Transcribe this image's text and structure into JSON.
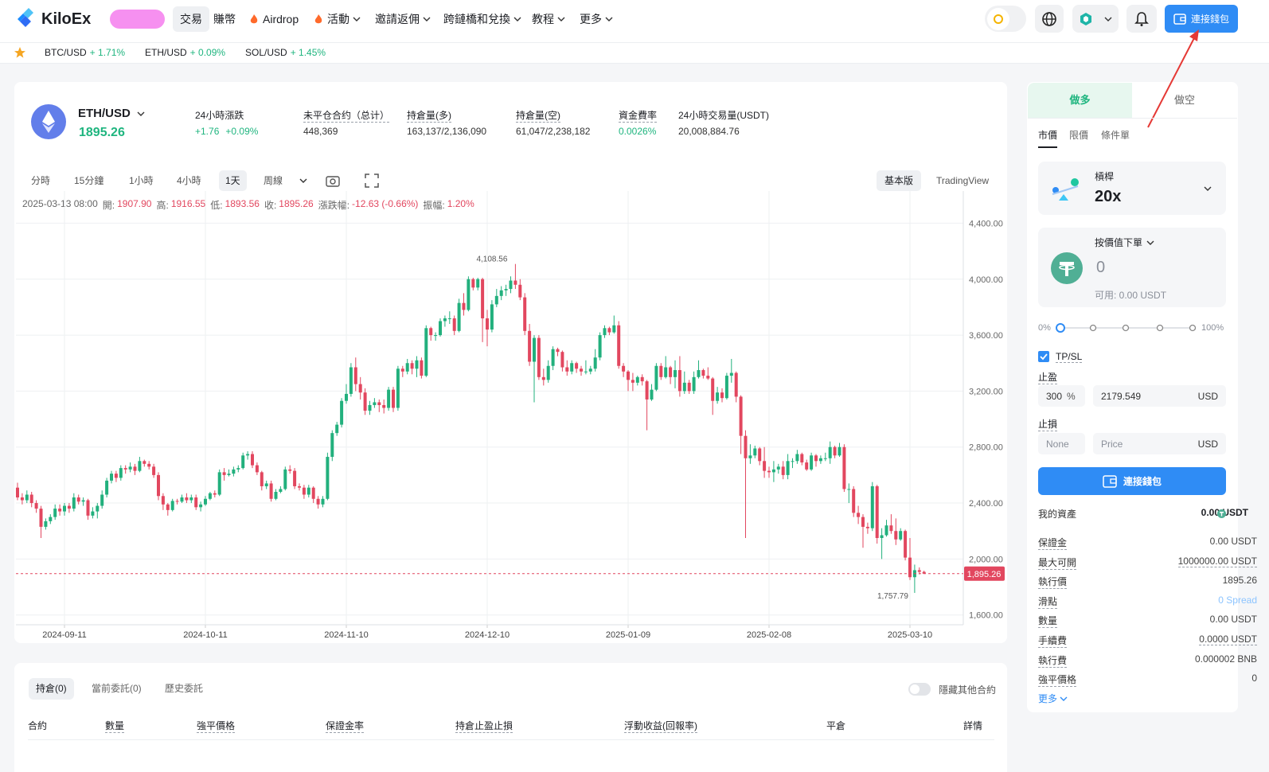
{
  "nav": {
    "logo": "KiloEx",
    "items": [
      "交易",
      "賺幣",
      "Airdrop",
      "活動",
      "邀請返佣",
      "跨鏈橋和兌換",
      "教程",
      "更多"
    ],
    "connect": "連接錢包"
  },
  "ticker": [
    {
      "pair": "BTC/USD",
      "change": "+ 1.71%"
    },
    {
      "pair": "ETH/USD",
      "change": "+ 0.09%"
    },
    {
      "pair": "SOL/USD",
      "change": "+ 1.45%"
    }
  ],
  "market": {
    "pair": "ETH/USD",
    "price": "1895.26",
    "stats": [
      {
        "label": "24小時漲跌",
        "values": [
          "+1.76",
          "+0.09%"
        ],
        "color": "#1fb57f"
      },
      {
        "label": "未平仓合约（总计）",
        "values": [
          "448,369"
        ]
      },
      {
        "label": "持倉量(多)",
        "values": [
          "163,137/2,136,090"
        ]
      },
      {
        "label": "持倉量(空)",
        "values": [
          "61,047/2,238,182"
        ]
      },
      {
        "label": "資金費率",
        "values": [
          "0.0026%"
        ],
        "color": "#1fb57f"
      },
      {
        "label": "24小時交易量(USDT)",
        "values": [
          "20,008,884.76"
        ]
      }
    ]
  },
  "toolbar": {
    "intervals": [
      "分時",
      "15分鐘",
      "1小時",
      "4小時",
      "1天",
      "周線"
    ],
    "views": [
      "基本版",
      "TradingView"
    ]
  },
  "chart_data": {
    "type": "candlestick",
    "info": {
      "time": "2025-03-13 08:00",
      "items": [
        {
          "label": "開:",
          "value": "1907.90"
        },
        {
          "label": "高:",
          "value": "1916.55"
        },
        {
          "label": "低:",
          "value": "1893.56"
        },
        {
          "label": "收:",
          "value": "1895.26"
        },
        {
          "label": "漲跌幅:",
          "value": "-12.63 (-0.66%)"
        },
        {
          "label": "振幅:",
          "value": "1.20%"
        }
      ]
    },
    "up_color": "#22b07d",
    "down_color": "#e2475f",
    "grid": true,
    "x": [
      "2024-09-01",
      "2024-09-02",
      "2024-09-03",
      "2024-09-04",
      "2024-09-05",
      "2024-09-06",
      "2024-09-07",
      "2024-09-08",
      "2024-09-09",
      "2024-09-10",
      "2024-09-11",
      "2024-09-12",
      "2024-09-13",
      "2024-09-14",
      "2024-09-15",
      "2024-09-16",
      "2024-09-17",
      "2024-09-18",
      "2024-09-19",
      "2024-09-20",
      "2024-09-21",
      "2024-09-22",
      "2024-09-23",
      "2024-09-24",
      "2024-09-25",
      "2024-09-26",
      "2024-09-27",
      "2024-09-28",
      "2024-09-29",
      "2024-09-30",
      "2024-10-01",
      "2024-10-02",
      "2024-10-03",
      "2024-10-04",
      "2024-10-05",
      "2024-10-06",
      "2024-10-07",
      "2024-10-08",
      "2024-10-09",
      "2024-10-10",
      "2024-10-11",
      "2024-10-12",
      "2024-10-13",
      "2024-10-14",
      "2024-10-15",
      "2024-10-16",
      "2024-10-17",
      "2024-10-18",
      "2024-10-19",
      "2024-10-20",
      "2024-10-21",
      "2024-10-22",
      "2024-10-23",
      "2024-10-24",
      "2024-10-25",
      "2024-10-26",
      "2024-10-27",
      "2024-10-28",
      "2024-10-29",
      "2024-10-30",
      "2024-10-31",
      "2024-11-01",
      "2024-11-02",
      "2024-11-03",
      "2024-11-04",
      "2024-11-05",
      "2024-11-06",
      "2024-11-07",
      "2024-11-08",
      "2024-11-09",
      "2024-11-10",
      "2024-11-11",
      "2024-11-12",
      "2024-11-13",
      "2024-11-14",
      "2024-11-15",
      "2024-11-16",
      "2024-11-17",
      "2024-11-18",
      "2024-11-19",
      "2024-11-20",
      "2024-11-21",
      "2024-11-22",
      "2024-11-23",
      "2024-11-24",
      "2024-11-25",
      "2024-11-26",
      "2024-11-27",
      "2024-11-28",
      "2024-11-29",
      "2024-11-30",
      "2024-12-01",
      "2024-12-02",
      "2024-12-03",
      "2024-12-04",
      "2024-12-05",
      "2024-12-06",
      "2024-12-07",
      "2024-12-08",
      "2024-12-09",
      "2024-12-10",
      "2024-12-11",
      "2024-12-12",
      "2024-12-13",
      "2024-12-14",
      "2024-12-15",
      "2024-12-16",
      "2024-12-17",
      "2024-12-18",
      "2024-12-19",
      "2024-12-20",
      "2024-12-21",
      "2024-12-22",
      "2024-12-23",
      "2024-12-24",
      "2024-12-25",
      "2024-12-26",
      "2024-12-27",
      "2024-12-28",
      "2024-12-29",
      "2024-12-30",
      "2024-12-31",
      "2025-01-01",
      "2025-01-02",
      "2025-01-03",
      "2025-01-04",
      "2025-01-05",
      "2025-01-06",
      "2025-01-07",
      "2025-01-08",
      "2025-01-09",
      "2025-01-10",
      "2025-01-11",
      "2025-01-12",
      "2025-01-13",
      "2025-01-14",
      "2025-01-15",
      "2025-01-16",
      "2025-01-17",
      "2025-01-18",
      "2025-01-19",
      "2025-01-20",
      "2025-01-21",
      "2025-01-22",
      "2025-01-23",
      "2025-01-24",
      "2025-01-25",
      "2025-01-26",
      "2025-01-27",
      "2025-01-28",
      "2025-01-29",
      "2025-01-30",
      "2025-01-31",
      "2025-02-01",
      "2025-02-02",
      "2025-02-03",
      "2025-02-04",
      "2025-02-05",
      "2025-02-06",
      "2025-02-07",
      "2025-02-08",
      "2025-02-09",
      "2025-02-10",
      "2025-02-11",
      "2025-02-12",
      "2025-02-13",
      "2025-02-14",
      "2025-02-15",
      "2025-02-16",
      "2025-02-17",
      "2025-02-18",
      "2025-02-19",
      "2025-02-20",
      "2025-02-21",
      "2025-02-22",
      "2025-02-23",
      "2025-02-24",
      "2025-02-25",
      "2025-02-26",
      "2025-02-27",
      "2025-02-28",
      "2025-03-01",
      "2025-03-02",
      "2025-03-03",
      "2025-03-04",
      "2025-03-05",
      "2025-03-06",
      "2025-03-07",
      "2025-03-08",
      "2025-03-09",
      "2025-03-10",
      "2025-03-11",
      "2025-03-12",
      "2025-03-13"
    ],
    "open": [
      2510,
      2440,
      2420,
      2460,
      2400,
      2360,
      2230,
      2270,
      2300,
      2360,
      2340,
      2380,
      2360,
      2440,
      2410,
      2420,
      2310,
      2340,
      2380,
      2460,
      2560,
      2610,
      2580,
      2650,
      2640,
      2660,
      2630,
      2700,
      2680,
      2660,
      2600,
      2450,
      2390,
      2350,
      2415,
      2410,
      2440,
      2420,
      2440,
      2370,
      2390,
      2430,
      2470,
      2460,
      2620,
      2600,
      2610,
      2640,
      2650,
      2740,
      2750,
      2670,
      2620,
      2520,
      2540,
      2430,
      2480,
      2500,
      2640,
      2630,
      2520,
      2510,
      2460,
      2510,
      2430,
      2390,
      2430,
      2730,
      2900,
      2960,
      3130,
      3180,
      3370,
      3250,
      3190,
      3060,
      3100,
      3120,
      3100,
      3080,
      3210,
      3080,
      3360,
      3340,
      3400,
      3360,
      3420,
      3310,
      3650,
      3600,
      3600,
      3700,
      3720,
      3720,
      3630,
      3830,
      3780,
      4000,
      3940,
      4000,
      3720,
      3640,
      3820,
      3880,
      3920,
      3930,
      3990,
      3960,
      3870,
      3630,
      3410,
      3580,
      3300,
      3280,
      3380,
      3500,
      3480,
      3370,
      3340,
      3400,
      3360,
      3340,
      3340,
      3360,
      3440,
      3600,
      3650,
      3620,
      3670,
      3380,
      3340,
      3280,
      3260,
      3300,
      3270,
      3140,
      3210,
      3380,
      3300,
      3370,
      3300,
      3350,
      3200,
      3260,
      3200,
      3300,
      3350,
      3310,
      3290,
      3130,
      3190,
      3150,
      3310,
      3330,
      3160,
      2880,
      2720,
      2740,
      2790,
      2700,
      2630,
      2620,
      2640,
      2660,
      2600,
      2700,
      2700,
      2750,
      2690,
      2640,
      2740,
      2700,
      2720,
      2720,
      2800,
      2740,
      2800,
      2500,
      2500,
      2330,
      2300,
      2230,
      2220,
      2520,
      2150,
      2170,
      2240,
      2200,
      2140,
      2200,
      2010,
      1870,
      1920,
      1907.9
    ],
    "high": [
      2545,
      2470,
      2490,
      2480,
      2420,
      2380,
      2290,
      2320,
      2390,
      2390,
      2400,
      2400,
      2470,
      2460,
      2440,
      2430,
      2370,
      2400,
      2490,
      2580,
      2630,
      2630,
      2670,
      2670,
      2690,
      2680,
      2730,
      2710,
      2700,
      2680,
      2620,
      2470,
      2400,
      2430,
      2430,
      2460,
      2470,
      2460,
      2460,
      2410,
      2450,
      2480,
      2490,
      2640,
      2650,
      2640,
      2660,
      2670,
      2760,
      2770,
      2770,
      2690,
      2630,
      2560,
      2560,
      2500,
      2520,
      2660,
      2670,
      2650,
      2540,
      2530,
      2530,
      2520,
      2450,
      2450,
      2760,
      2920,
      2980,
      3150,
      3250,
      3400,
      3440,
      3300,
      3220,
      3130,
      3150,
      3140,
      3140,
      3230,
      3230,
      3380,
      3380,
      3430,
      3420,
      3450,
      3440,
      3670,
      3660,
      3620,
      3720,
      3740,
      3770,
      3740,
      3860,
      3900,
      4020,
      4010,
      4010,
      4010,
      3780,
      3850,
      3930,
      3950,
      3960,
      4020,
      4108.56,
      4000,
      3900,
      3680,
      3600,
      3600,
      3360,
      3420,
      3520,
      3510,
      3490,
      3420,
      3420,
      3410,
      3380,
      3420,
      3380,
      3500,
      3620,
      3670,
      3660,
      3740,
      3700,
      3400,
      3350,
      3330,
      3310,
      3320,
      3280,
      3250,
      3400,
      3400,
      3450,
      3380,
      3420,
      3450,
      3340,
      3280,
      3340,
      3420,
      3360,
      3370,
      3300,
      3230,
      3220,
      3330,
      3430,
      3340,
      3170,
      2920,
      2820,
      2810,
      2800,
      2800,
      2660,
      2700,
      2680,
      2700,
      2750,
      2720,
      2780,
      2760,
      2710,
      2760,
      2750,
      2740,
      2760,
      2840,
      2810,
      2830,
      2820,
      2540,
      2520,
      2380,
      2320,
      2260,
      2550,
      2530,
      2220,
      2280,
      2320,
      2290,
      2220,
      2210,
      2150,
      1960,
      1940,
      1916.55
    ],
    "low": [
      2420,
      2390,
      2400,
      2370,
      2330,
      2150,
      2210,
      2250,
      2280,
      2310,
      2310,
      2330,
      2340,
      2390,
      2380,
      2280,
      2290,
      2290,
      2360,
      2440,
      2540,
      2550,
      2560,
      2610,
      2620,
      2600,
      2620,
      2660,
      2640,
      2580,
      2420,
      2350,
      2310,
      2340,
      2390,
      2400,
      2400,
      2400,
      2350,
      2340,
      2380,
      2420,
      2440,
      2450,
      2560,
      2590,
      2590,
      2620,
      2640,
      2710,
      2650,
      2600,
      2490,
      2500,
      2410,
      2420,
      2470,
      2490,
      2610,
      2500,
      2490,
      2430,
      2440,
      2400,
      2360,
      2370,
      2420,
      2700,
      2880,
      2940,
      3110,
      3160,
      3200,
      3140,
      3030,
      3030,
      3080,
      3050,
      3040,
      3060,
      3050,
      3060,
      3300,
      3320,
      3320,
      3300,
      3290,
      3300,
      3560,
      3560,
      3590,
      3660,
      3680,
      3600,
      3620,
      3740,
      3770,
      3920,
      3920,
      3550,
      3520,
      3620,
      3800,
      3850,
      3880,
      3900,
      3930,
      3850,
      3600,
      3380,
      3120,
      3280,
      3240,
      3260,
      3350,
      3450,
      3340,
      3310,
      3320,
      3330,
      3310,
      3320,
      3320,
      3340,
      3420,
      3580,
      3600,
      3610,
      3360,
      3300,
      3200,
      3200,
      3240,
      3240,
      2920,
      3130,
      3200,
      3280,
      3290,
      3250,
      3220,
      3160,
      3180,
      3180,
      3180,
      3290,
      3290,
      3280,
      3030,
      3110,
      3120,
      3140,
      3260,
      3120,
      2750,
      2150,
      2680,
      2720,
      2670,
      2580,
      2580,
      2550,
      2610,
      2570,
      2570,
      2650,
      2680,
      2670,
      2630,
      2630,
      2660,
      2680,
      2700,
      2680,
      2720,
      2730,
      2480,
      2400,
      2300,
      2250,
      2080,
      2180,
      2200,
      2110,
      2000,
      2160,
      2180,
      2100,
      2130,
      1990,
      1850,
      1757.79,
      1890,
      1893.56
    ],
    "close": [
      2440,
      2420,
      2460,
      2400,
      2360,
      2230,
      2270,
      2300,
      2360,
      2340,
      2380,
      2360,
      2440,
      2410,
      2420,
      2310,
      2340,
      2380,
      2460,
      2560,
      2610,
      2580,
      2650,
      2640,
      2660,
      2630,
      2700,
      2680,
      2660,
      2600,
      2450,
      2390,
      2350,
      2415,
      2410,
      2440,
      2420,
      2440,
      2370,
      2390,
      2430,
      2470,
      2460,
      2620,
      2600,
      2610,
      2640,
      2650,
      2740,
      2750,
      2670,
      2620,
      2520,
      2540,
      2430,
      2480,
      2500,
      2640,
      2630,
      2520,
      2510,
      2460,
      2510,
      2430,
      2390,
      2430,
      2730,
      2900,
      2960,
      3130,
      3180,
      3370,
      3250,
      3190,
      3060,
      3100,
      3120,
      3100,
      3080,
      3210,
      3080,
      3360,
      3340,
      3400,
      3360,
      3420,
      3310,
      3650,
      3600,
      3600,
      3700,
      3720,
      3720,
      3630,
      3830,
      3780,
      4000,
      3940,
      4000,
      3720,
      3640,
      3820,
      3880,
      3920,
      3930,
      3990,
      3960,
      3870,
      3630,
      3410,
      3580,
      3300,
      3280,
      3380,
      3500,
      3480,
      3370,
      3340,
      3400,
      3360,
      3340,
      3340,
      3360,
      3440,
      3600,
      3650,
      3620,
      3670,
      3380,
      3340,
      3280,
      3260,
      3300,
      3270,
      3140,
      3210,
      3380,
      3300,
      3370,
      3300,
      3350,
      3200,
      3260,
      3200,
      3300,
      3350,
      3310,
      3290,
      3130,
      3190,
      3150,
      3310,
      3330,
      3160,
      2880,
      2720,
      2740,
      2790,
      2700,
      2630,
      2620,
      2640,
      2660,
      2600,
      2700,
      2700,
      2750,
      2690,
      2640,
      2740,
      2700,
      2720,
      2720,
      2800,
      2740,
      2800,
      2500,
      2500,
      2330,
      2300,
      2230,
      2220,
      2520,
      2150,
      2170,
      2240,
      2200,
      2140,
      2200,
      2010,
      1870,
      1920,
      1907.9,
      1895.26
    ],
    "ylim": [
      1530,
      4630
    ],
    "yticks": [
      {
        "value": 1600,
        "label": "1,600.00"
      },
      {
        "value": 2000,
        "label": "2,000.00"
      },
      {
        "value": 2400,
        "label": "2,400.00"
      },
      {
        "value": 2800,
        "label": "2,800.00"
      },
      {
        "value": 3200,
        "label": "3,200.00"
      },
      {
        "value": 3600,
        "label": "3,600.00"
      },
      {
        "value": 4000,
        "label": "4,000.00"
      },
      {
        "value": 4400,
        "label": "4,400.00"
      }
    ],
    "xticks": [
      "2024-09-11",
      "2024-10-11",
      "2024-11-10",
      "2024-12-10",
      "2025-01-09",
      "2025-02-08",
      "2025-03-10"
    ],
    "max_label": {
      "value": 4108.56,
      "label": "4,108.56"
    },
    "min_label": {
      "value": 1757.79,
      "label": "1,757.79"
    },
    "last_price": {
      "value": 1895.26,
      "label": "1,895.26"
    }
  },
  "order": {
    "sides": [
      "做多",
      "做空"
    ],
    "types": [
      "市價",
      "限價",
      "條件單"
    ],
    "leverage_label": "槓桿",
    "leverage": "20x",
    "amount_mode": "按價值下單",
    "amount": "0",
    "available": "可用: 0.00 USDT",
    "slider": [
      "0%",
      "100%"
    ],
    "tpsl": "TP/SL",
    "take_profit": {
      "label": "止盈",
      "percent": "300",
      "unit": "%",
      "price": "2179.549",
      "currency": "USD"
    },
    "stop_loss": {
      "label": "止損",
      "percent": "None",
      "price": "Price",
      "currency": "USD"
    },
    "button": "連接錢包",
    "rows": [
      {
        "label": "我的資產",
        "value": "0.00 USDT"
      },
      {
        "label": "保證金",
        "value": "0.00 USDT"
      },
      {
        "label": "最大可開",
        "value": "1000000.00 USDT"
      },
      {
        "label": "執行價",
        "value": "1895.26"
      },
      {
        "label": "滑點",
        "value": "0 Spread"
      },
      {
        "label": "數量",
        "value": "0.00 USDT"
      },
      {
        "label": "手續費",
        "value": "0.0000 USDT"
      },
      {
        "label": "執行費",
        "value": "0.000002 BNB"
      },
      {
        "label": "強平價格",
        "value": "0"
      }
    ],
    "more": "更多"
  },
  "positions": {
    "tabs": [
      "持倉(0)",
      "當前委託(0)",
      "歷史委託"
    ],
    "hide_other": "隱藏其他合約",
    "columns": [
      "合約",
      "數量",
      "強平價格",
      "保證金率",
      "持倉止盈止損",
      "浮動收益(回報率)",
      "平倉",
      "詳情"
    ]
  }
}
